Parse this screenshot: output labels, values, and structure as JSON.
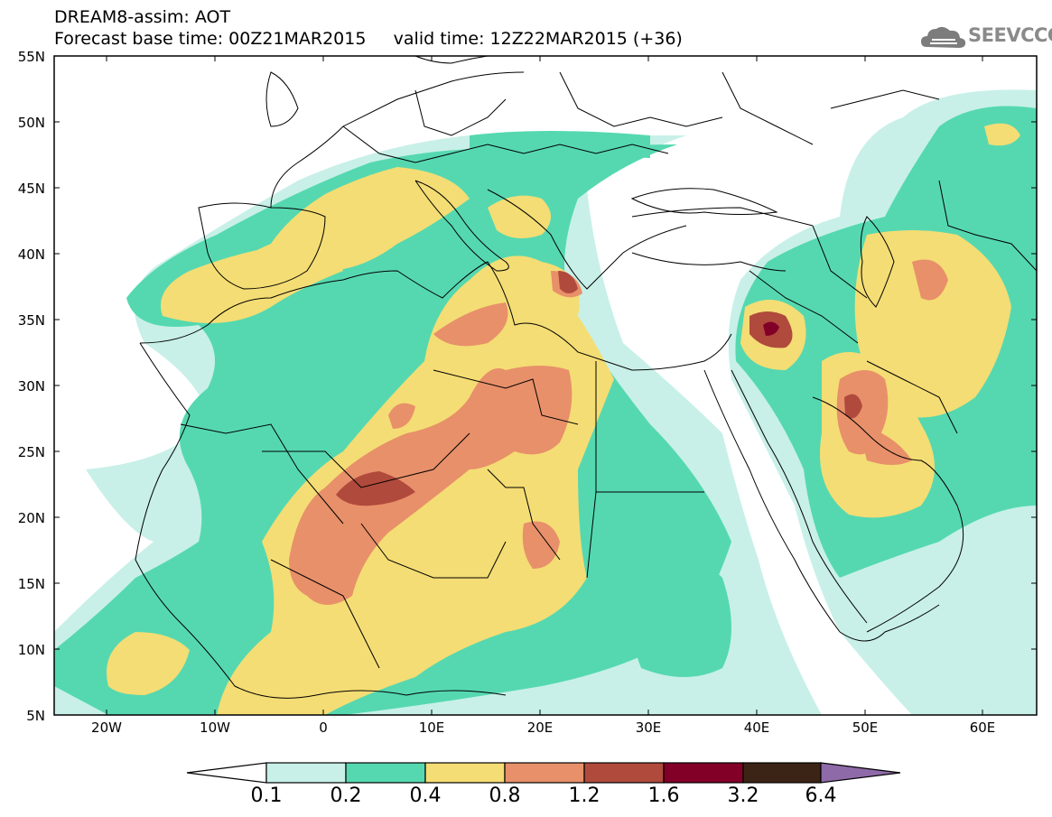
{
  "header": {
    "title_line1": "DREAM8-assim: AOT",
    "title_line2": "Forecast base time: 00Z21MAR2015     valid time: 12Z22MAR2015 (+36)",
    "logo_text": "SEEVCCC",
    "logo_icon": "cloud-icon"
  },
  "map": {
    "lat_range": [
      "5N",
      "55N"
    ],
    "lon_range": [
      "25W",
      "65E"
    ],
    "lat_labels": [
      "55N",
      "50N",
      "45N",
      "40N",
      "35N",
      "30N",
      "25N",
      "20N",
      "15N",
      "10N",
      "5N"
    ],
    "lon_labels": [
      "20W",
      "10W",
      "0",
      "10E",
      "20E",
      "30E",
      "40E",
      "50E",
      "60E"
    ],
    "field": "Aerosol Optical Thickness"
  },
  "colorbar": {
    "levels": [
      "0.1",
      "0.2",
      "0.4",
      "0.8",
      "1.2",
      "1.6",
      "3.2",
      "6.4"
    ],
    "colors": [
      "#c8f0e8",
      "#55d8b0",
      "#f4dd74",
      "#e8906a",
      "#b04a3c",
      "#820028",
      "#3b2416",
      "#8e6aa8"
    ],
    "under_color": "#ffffff",
    "over_color": "#8e6aa8"
  }
}
